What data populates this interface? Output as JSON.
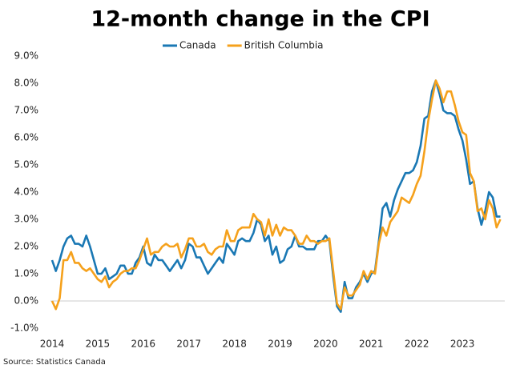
{
  "chart_data": {
    "type": "line",
    "title": "12-month change in the CPI",
    "source": "Source: Statistics Canada",
    "x": [
      2014,
      2014.083,
      2014.167,
      2014.25,
      2014.333,
      2014.417,
      2014.5,
      2014.583,
      2014.667,
      2014.75,
      2014.833,
      2014.917,
      2015,
      2015.083,
      2015.167,
      2015.25,
      2015.333,
      2015.417,
      2015.5,
      2015.583,
      2015.667,
      2015.75,
      2015.833,
      2015.917,
      2016,
      2016.083,
      2016.167,
      2016.25,
      2016.333,
      2016.417,
      2016.5,
      2016.583,
      2016.667,
      2016.75,
      2016.833,
      2016.917,
      2017,
      2017.083,
      2017.167,
      2017.25,
      2017.333,
      2017.417,
      2017.5,
      2017.583,
      2017.667,
      2017.75,
      2017.833,
      2017.917,
      2018,
      2018.083,
      2018.167,
      2018.25,
      2018.333,
      2018.417,
      2018.5,
      2018.583,
      2018.667,
      2018.75,
      2018.833,
      2018.917,
      2019,
      2019.083,
      2019.167,
      2019.25,
      2019.333,
      2019.417,
      2019.5,
      2019.583,
      2019.667,
      2019.75,
      2019.833,
      2019.917,
      2020,
      2020.083,
      2020.167,
      2020.25,
      2020.333,
      2020.417,
      2020.5,
      2020.583,
      2020.667,
      2020.75,
      2020.833,
      2020.917,
      2021,
      2021.083,
      2021.167,
      2021.25,
      2021.333,
      2021.417,
      2021.5,
      2021.583,
      2021.667,
      2021.75,
      2021.833,
      2021.917,
      2022,
      2022.083,
      2022.167,
      2022.25,
      2022.333,
      2022.417,
      2022.5,
      2022.583,
      2022.667,
      2022.75,
      2022.833,
      2022.917,
      2023,
      2023.083,
      2023.167,
      2023.25,
      2023.333,
      2023.417,
      2023.5,
      2023.583,
      2023.667,
      2023.75,
      2023.833
    ],
    "series": [
      {
        "name": "Canada",
        "color": "#1a78b4",
        "values": [
          1.5,
          1.1,
          1.5,
          2.0,
          2.3,
          2.4,
          2.1,
          2.1,
          2.0,
          2.4,
          2.0,
          1.5,
          1.0,
          1.0,
          1.2,
          0.8,
          0.9,
          1.0,
          1.3,
          1.3,
          1.0,
          1.0,
          1.4,
          1.6,
          2.0,
          1.4,
          1.3,
          1.7,
          1.5,
          1.5,
          1.3,
          1.1,
          1.3,
          1.5,
          1.2,
          1.5,
          2.1,
          2.0,
          1.6,
          1.6,
          1.3,
          1.0,
          1.2,
          1.4,
          1.6,
          1.4,
          2.1,
          1.9,
          1.7,
          2.2,
          2.3,
          2.2,
          2.2,
          2.5,
          3.0,
          2.8,
          2.2,
          2.4,
          1.7,
          2.0,
          1.4,
          1.5,
          1.9,
          2.0,
          2.4,
          2.0,
          2.0,
          1.9,
          1.9,
          1.9,
          2.2,
          2.2,
          2.4,
          2.2,
          0.9,
          -0.2,
          -0.4,
          0.7,
          0.1,
          0.1,
          0.5,
          0.7,
          1.0,
          0.7,
          1.0,
          1.1,
          2.2,
          3.4,
          3.6,
          3.1,
          3.7,
          4.1,
          4.4,
          4.7,
          4.7,
          4.8,
          5.1,
          5.7,
          6.7,
          6.8,
          7.7,
          8.1,
          7.6,
          7.0,
          6.9,
          6.9,
          6.8,
          6.3,
          5.9,
          5.2,
          4.3,
          4.4,
          3.4,
          2.8,
          3.3,
          4.0,
          3.8,
          3.1,
          3.1
        ]
      },
      {
        "name": "British Columbia",
        "color": "#f5a11c",
        "values": [
          0.0,
          -0.3,
          0.1,
          1.5,
          1.5,
          1.8,
          1.4,
          1.4,
          1.2,
          1.1,
          1.2,
          1.0,
          0.8,
          0.7,
          0.9,
          0.5,
          0.7,
          0.8,
          1.0,
          1.1,
          1.1,
          1.2,
          1.2,
          1.5,
          1.9,
          2.3,
          1.7,
          1.8,
          1.8,
          2.0,
          2.1,
          2.0,
          2.0,
          2.1,
          1.6,
          1.9,
          2.3,
          2.3,
          2.0,
          2.0,
          2.1,
          1.8,
          1.7,
          1.9,
          2.0,
          2.0,
          2.6,
          2.2,
          2.2,
          2.6,
          2.7,
          2.7,
          2.7,
          3.2,
          3.0,
          2.9,
          2.4,
          3.0,
          2.4,
          2.8,
          2.4,
          2.7,
          2.6,
          2.6,
          2.4,
          2.1,
          2.1,
          2.4,
          2.2,
          2.2,
          2.1,
          2.2,
          2.2,
          2.3,
          1.1,
          -0.1,
          -0.3,
          0.5,
          0.2,
          0.2,
          0.4,
          0.6,
          1.1,
          0.8,
          1.1,
          1.0,
          2.1,
          2.7,
          2.4,
          2.9,
          3.1,
          3.3,
          3.8,
          3.7,
          3.6,
          3.9,
          4.3,
          4.6,
          5.5,
          6.6,
          7.4,
          8.1,
          7.8,
          7.3,
          7.7,
          7.7,
          7.2,
          6.6,
          6.2,
          6.1,
          4.7,
          4.4,
          3.3,
          3.4,
          3.0,
          3.7,
          3.4,
          2.7,
          3.0
        ]
      }
    ],
    "xlim": [
      2014,
      2024
    ],
    "xticks": [
      2014,
      2015,
      2016,
      2017,
      2018,
      2019,
      2020,
      2021,
      2022,
      2023
    ],
    "ylim": [
      -1,
      9
    ],
    "yticks": [
      {
        "value": -1,
        "label": "-1.0%"
      },
      {
        "value": 0,
        "label": "0.0%"
      },
      {
        "value": 1,
        "label": "1.0%"
      },
      {
        "value": 2,
        "label": "2.0%"
      },
      {
        "value": 3,
        "label": "3.0%"
      },
      {
        "value": 4,
        "label": "4.0%"
      },
      {
        "value": 5,
        "label": "5.0%"
      },
      {
        "value": 6,
        "label": "6.0%"
      },
      {
        "value": 7,
        "label": "7.0%"
      },
      {
        "value": 8,
        "label": "8.0%"
      },
      {
        "value": 9,
        "label": "9.0%"
      }
    ],
    "grid": false
  }
}
